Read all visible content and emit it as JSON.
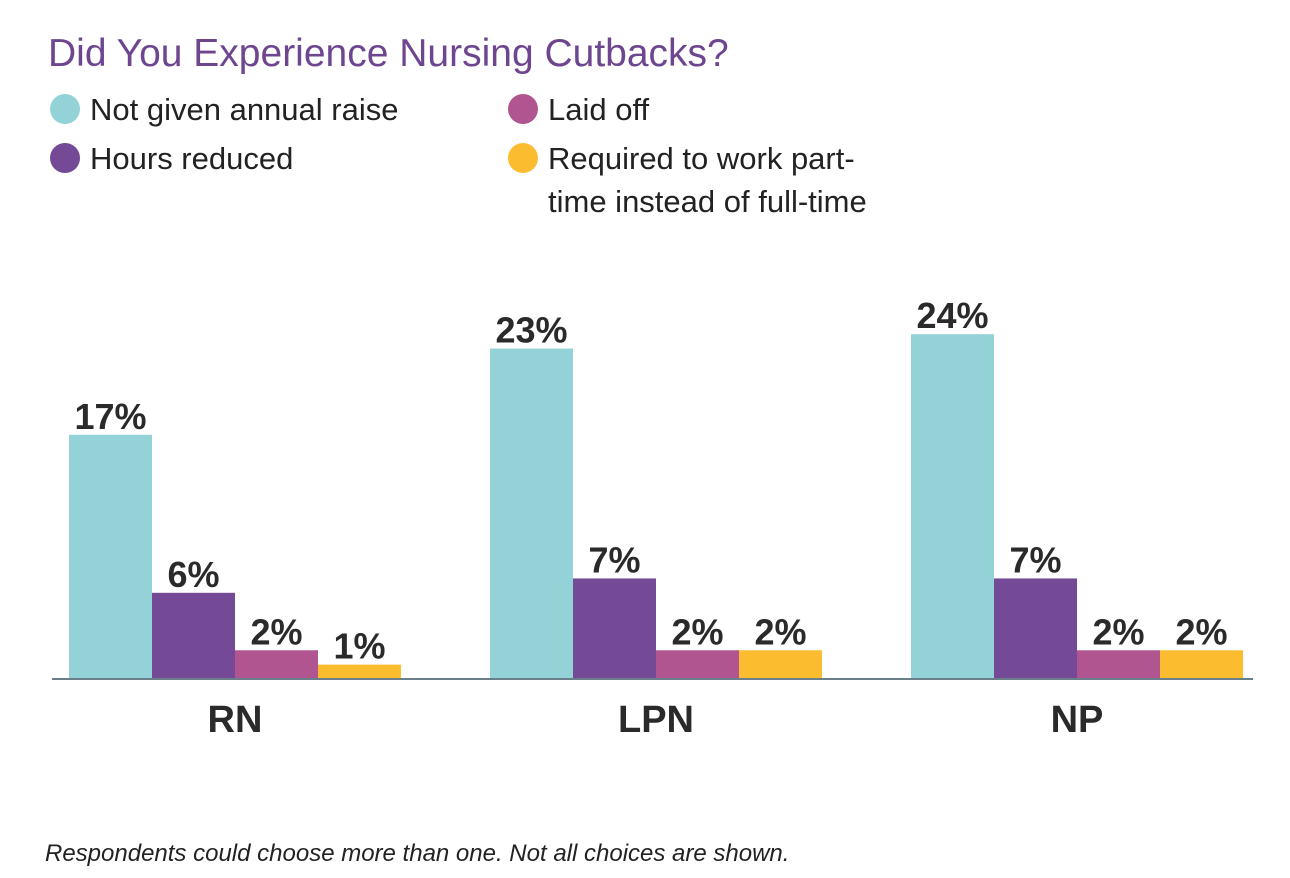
{
  "chart_data": {
    "type": "bar",
    "title": "Did You Experience Nursing Cutbacks?",
    "categories": [
      "RN",
      "LPN",
      "NP"
    ],
    "series": [
      {
        "name": "Not given annual raise",
        "color": "#93d3d8",
        "values": [
          17,
          23,
          24
        ],
        "value_labels": [
          "17%",
          "23%",
          "24%"
        ]
      },
      {
        "name": "Hours reduced",
        "color": "#744a96",
        "values": [
          6,
          7,
          7
        ],
        "value_labels": [
          "6%",
          "7%",
          "7%"
        ]
      },
      {
        "name": "Laid off",
        "color": "#b0558f",
        "values": [
          2,
          2,
          2
        ],
        "value_labels": [
          "2%",
          "2%",
          "2%"
        ]
      },
      {
        "name": "Required to work part-time instead of full-time",
        "color": "#fbbc30",
        "values": [
          1,
          2,
          2
        ],
        "value_labels": [
          "1%",
          "2%",
          "2%"
        ]
      }
    ],
    "ylim": [
      0,
      30
    ],
    "note": "Respondents could choose more than one. Not all choices are shown."
  }
}
